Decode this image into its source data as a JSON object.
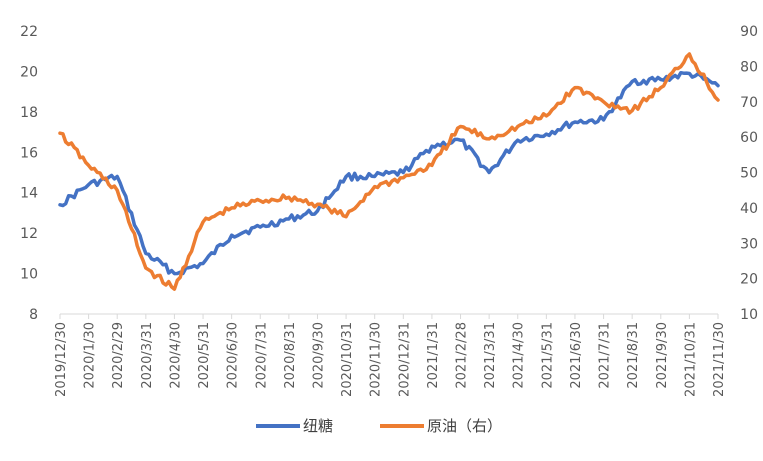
{
  "chart_data": {
    "type": "line",
    "title": "",
    "xlabel": "",
    "ylabel": "",
    "ylim": [
      8,
      22
    ],
    "y2lim": [
      10,
      90
    ],
    "y_ticks": [
      "8",
      "10",
      "12",
      "14",
      "16",
      "18",
      "20",
      "22"
    ],
    "y2_ticks": [
      "10",
      "20",
      "30",
      "40",
      "50",
      "60",
      "70",
      "80",
      "90"
    ],
    "grid": false,
    "legend": "bottom",
    "categories": [
      "2019/12/30",
      "2020/1/30",
      "2020/2/29",
      "2020/3/31",
      "2020/4/30",
      "2020/5/31",
      "2020/6/30",
      "2020/7/31",
      "2020/8/31",
      "2020/9/30",
      "2020/10/31",
      "2020/11/30",
      "2020/12/31",
      "2021/1/31",
      "2021/2/28",
      "2021/3/31",
      "2021/4/30",
      "2021/5/31",
      "2021/6/30",
      "2021/7/31",
      "2021/8/31",
      "2021/9/30",
      "2021/10/31",
      "2021/11/30"
    ],
    "series": [
      {
        "name": "纽糖",
        "axis": "left",
        "color": "#4472C4",
        "values": [
          13.4,
          14.4,
          14.8,
          11.0,
          10.0,
          10.5,
          11.9,
          12.3,
          12.7,
          13.1,
          14.8,
          14.8,
          15.0,
          16.3,
          16.6,
          15.0,
          16.6,
          16.9,
          17.5,
          17.6,
          19.5,
          19.6,
          19.9,
          19.3
        ]
      },
      {
        "name": "原油（右）",
        "axis": "right",
        "color": "#ED7D31",
        "values": [
          61.1,
          52.0,
          45.0,
          23.0,
          17.0,
          36.0,
          40.0,
          42.0,
          43.0,
          41.0,
          37.5,
          46.0,
          48.5,
          52.0,
          63.0,
          59.5,
          63.0,
          66.0,
          74.0,
          70.0,
          67.5,
          74.0,
          83.5,
          70.5
        ]
      }
    ]
  }
}
